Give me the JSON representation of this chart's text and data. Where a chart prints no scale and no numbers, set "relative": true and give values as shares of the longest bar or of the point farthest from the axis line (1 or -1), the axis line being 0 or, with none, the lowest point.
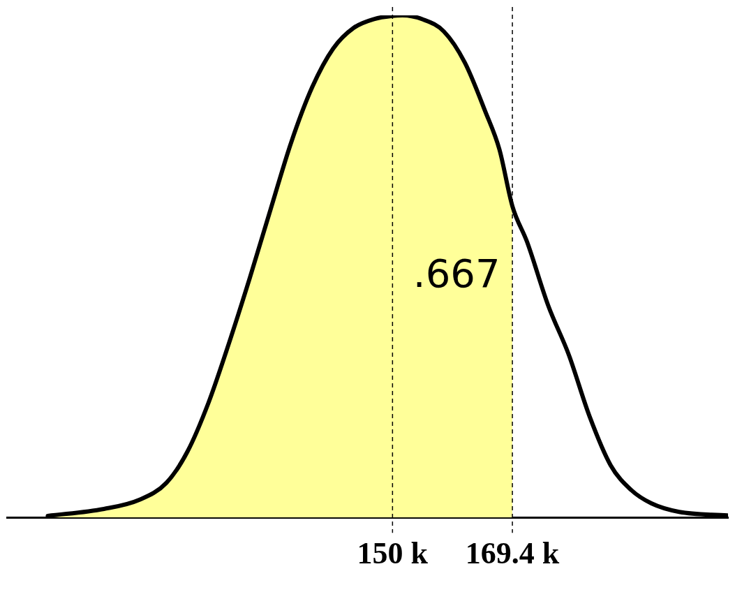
{
  "chart_data": {
    "type": "area",
    "relative": true,
    "xlim": [
      87.6,
      204.3
    ],
    "xticks": [
      {
        "value": 150,
        "label": "150 k"
      },
      {
        "value": 169.4,
        "label": "169.4 k"
      }
    ],
    "grid": false,
    "legend": false,
    "series": [
      {
        "color": "#ffff99",
        "x": [
          94.2,
          103.3,
          109.0,
          113.4,
          116.8,
          120.2,
          123.5,
          126.9,
          130.3,
          133.6,
          137.0,
          140.4,
          143.7,
          147.1,
          150,
          151.6,
          154.9,
          158.3,
          161.7,
          165.0,
          167.3,
          169.4
        ],
        "values": [
          0.003,
          0.017,
          0.035,
          0.069,
          0.131,
          0.228,
          0.346,
          0.477,
          0.615,
          0.747,
          0.857,
          0.934,
          0.975,
          0.993,
          0.999,
          1,
          0.992,
          0.968,
          0.906,
          0.809,
          0.733,
          0.62
        ]
      },
      {
        "type": "line",
        "color": "#000000",
        "x": [
          94.2,
          103.3,
          109.0,
          113.4,
          116.8,
          120.2,
          123.5,
          126.9,
          130.3,
          133.6,
          137.0,
          140.4,
          143.7,
          147.1,
          150,
          151.6,
          154.9,
          158.3,
          161.7,
          165.0,
          167.3,
          169.4,
          171.8,
          175.2,
          178.5,
          181.9,
          185.3,
          188.6,
          191.9,
          196.4,
          204.2
        ],
        "values": [
          0.003,
          0.017,
          0.035,
          0.069,
          0.131,
          0.228,
          0.346,
          0.477,
          0.615,
          0.747,
          0.857,
          0.934,
          0.975,
          0.993,
          0.999,
          1,
          0.992,
          0.968,
          0.906,
          0.809,
          0.733,
          0.62,
          0.548,
          0.422,
          0.325,
          0.201,
          0.104,
          0.055,
          0.028,
          0.011,
          0.004
        ]
      }
    ],
    "ref_lines": [
      {
        "axis": "x",
        "value": 150,
        "color": "#000000",
        "line_style": "dashed"
      },
      {
        "axis": "x",
        "value": 169.4,
        "color": "#000000",
        "line_style": "dashed"
      }
    ],
    "annotations": [
      ".667"
    ]
  }
}
